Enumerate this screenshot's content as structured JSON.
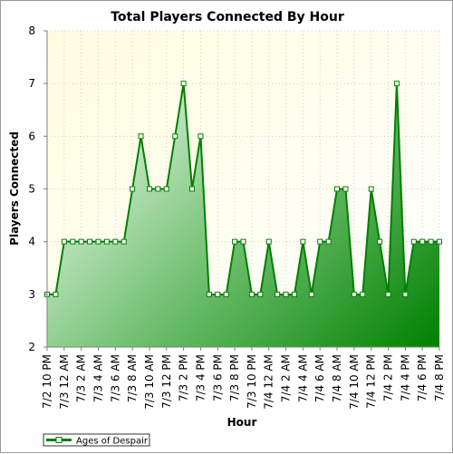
{
  "chart_data": {
    "type": "area",
    "title": "Total Players Connected By Hour",
    "xlabel": "Hour",
    "ylabel": "Players Connected",
    "ylim": [
      2,
      8
    ],
    "yticks": [
      2,
      3,
      4,
      5,
      6,
      7,
      8
    ],
    "grid": true,
    "legend_position": "bottom-left",
    "x_labels": [
      "7/2 10 PM",
      "7/3 12 AM",
      "7/3 2 AM",
      "7/3 4 AM",
      "7/3 6 AM",
      "7/3 8 AM",
      "7/3 10 AM",
      "7/3 12 PM",
      "7/3 2 PM",
      "7/3 4 PM",
      "7/3 6 PM",
      "7/3 8 PM",
      "7/3 10 PM",
      "7/4 12 AM",
      "7/4 2 AM",
      "7/4 4 AM",
      "7/4 6 AM",
      "7/4 8 AM",
      "7/4 10 AM",
      "7/4 12 PM",
      "7/4 2 PM",
      "7/4 4 PM",
      "7/4 6 PM",
      "7/4 8 PM"
    ],
    "series": [
      {
        "name": "Ages of Despair",
        "color": "#008000",
        "values": [
          3,
          3,
          4,
          4,
          4,
          4,
          4,
          4,
          4,
          4,
          5,
          6,
          5,
          5,
          5,
          6,
          7,
          5,
          6,
          3,
          3,
          3,
          4,
          4,
          3,
          3,
          4,
          3,
          3,
          3,
          4,
          3,
          4,
          4,
          5,
          5,
          3,
          3,
          5,
          4,
          3,
          7,
          3,
          4,
          4,
          4,
          4
        ]
      }
    ]
  }
}
